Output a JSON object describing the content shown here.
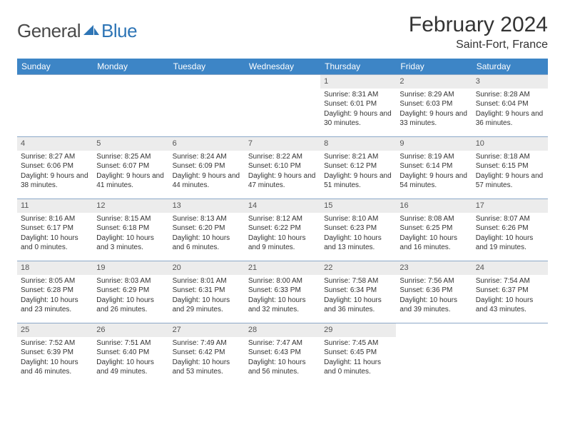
{
  "logo": {
    "general": "General",
    "blue": "Blue",
    "icon_color": "#2e75b6"
  },
  "title": "February 2024",
  "location": "Saint-Fort, France",
  "header_bg": "#3d85c6",
  "border_color": "#8ca8c8",
  "daynum_bg": "#ececec",
  "day_names": [
    "Sunday",
    "Monday",
    "Tuesday",
    "Wednesday",
    "Thursday",
    "Friday",
    "Saturday"
  ],
  "weeks": [
    [
      null,
      null,
      null,
      null,
      {
        "n": "1",
        "sr": "Sunrise: 8:31 AM",
        "ss": "Sunset: 6:01 PM",
        "dl": "Daylight: 9 hours and 30 minutes."
      },
      {
        "n": "2",
        "sr": "Sunrise: 8:29 AM",
        "ss": "Sunset: 6:03 PM",
        "dl": "Daylight: 9 hours and 33 minutes."
      },
      {
        "n": "3",
        "sr": "Sunrise: 8:28 AM",
        "ss": "Sunset: 6:04 PM",
        "dl": "Daylight: 9 hours and 36 minutes."
      }
    ],
    [
      {
        "n": "4",
        "sr": "Sunrise: 8:27 AM",
        "ss": "Sunset: 6:06 PM",
        "dl": "Daylight: 9 hours and 38 minutes."
      },
      {
        "n": "5",
        "sr": "Sunrise: 8:25 AM",
        "ss": "Sunset: 6:07 PM",
        "dl": "Daylight: 9 hours and 41 minutes."
      },
      {
        "n": "6",
        "sr": "Sunrise: 8:24 AM",
        "ss": "Sunset: 6:09 PM",
        "dl": "Daylight: 9 hours and 44 minutes."
      },
      {
        "n": "7",
        "sr": "Sunrise: 8:22 AM",
        "ss": "Sunset: 6:10 PM",
        "dl": "Daylight: 9 hours and 47 minutes."
      },
      {
        "n": "8",
        "sr": "Sunrise: 8:21 AM",
        "ss": "Sunset: 6:12 PM",
        "dl": "Daylight: 9 hours and 51 minutes."
      },
      {
        "n": "9",
        "sr": "Sunrise: 8:19 AM",
        "ss": "Sunset: 6:14 PM",
        "dl": "Daylight: 9 hours and 54 minutes."
      },
      {
        "n": "10",
        "sr": "Sunrise: 8:18 AM",
        "ss": "Sunset: 6:15 PM",
        "dl": "Daylight: 9 hours and 57 minutes."
      }
    ],
    [
      {
        "n": "11",
        "sr": "Sunrise: 8:16 AM",
        "ss": "Sunset: 6:17 PM",
        "dl": "Daylight: 10 hours and 0 minutes."
      },
      {
        "n": "12",
        "sr": "Sunrise: 8:15 AM",
        "ss": "Sunset: 6:18 PM",
        "dl": "Daylight: 10 hours and 3 minutes."
      },
      {
        "n": "13",
        "sr": "Sunrise: 8:13 AM",
        "ss": "Sunset: 6:20 PM",
        "dl": "Daylight: 10 hours and 6 minutes."
      },
      {
        "n": "14",
        "sr": "Sunrise: 8:12 AM",
        "ss": "Sunset: 6:22 PM",
        "dl": "Daylight: 10 hours and 9 minutes."
      },
      {
        "n": "15",
        "sr": "Sunrise: 8:10 AM",
        "ss": "Sunset: 6:23 PM",
        "dl": "Daylight: 10 hours and 13 minutes."
      },
      {
        "n": "16",
        "sr": "Sunrise: 8:08 AM",
        "ss": "Sunset: 6:25 PM",
        "dl": "Daylight: 10 hours and 16 minutes."
      },
      {
        "n": "17",
        "sr": "Sunrise: 8:07 AM",
        "ss": "Sunset: 6:26 PM",
        "dl": "Daylight: 10 hours and 19 minutes."
      }
    ],
    [
      {
        "n": "18",
        "sr": "Sunrise: 8:05 AM",
        "ss": "Sunset: 6:28 PM",
        "dl": "Daylight: 10 hours and 23 minutes."
      },
      {
        "n": "19",
        "sr": "Sunrise: 8:03 AM",
        "ss": "Sunset: 6:29 PM",
        "dl": "Daylight: 10 hours and 26 minutes."
      },
      {
        "n": "20",
        "sr": "Sunrise: 8:01 AM",
        "ss": "Sunset: 6:31 PM",
        "dl": "Daylight: 10 hours and 29 minutes."
      },
      {
        "n": "21",
        "sr": "Sunrise: 8:00 AM",
        "ss": "Sunset: 6:33 PM",
        "dl": "Daylight: 10 hours and 32 minutes."
      },
      {
        "n": "22",
        "sr": "Sunrise: 7:58 AM",
        "ss": "Sunset: 6:34 PM",
        "dl": "Daylight: 10 hours and 36 minutes."
      },
      {
        "n": "23",
        "sr": "Sunrise: 7:56 AM",
        "ss": "Sunset: 6:36 PM",
        "dl": "Daylight: 10 hours and 39 minutes."
      },
      {
        "n": "24",
        "sr": "Sunrise: 7:54 AM",
        "ss": "Sunset: 6:37 PM",
        "dl": "Daylight: 10 hours and 43 minutes."
      }
    ],
    [
      {
        "n": "25",
        "sr": "Sunrise: 7:52 AM",
        "ss": "Sunset: 6:39 PM",
        "dl": "Daylight: 10 hours and 46 minutes."
      },
      {
        "n": "26",
        "sr": "Sunrise: 7:51 AM",
        "ss": "Sunset: 6:40 PM",
        "dl": "Daylight: 10 hours and 49 minutes."
      },
      {
        "n": "27",
        "sr": "Sunrise: 7:49 AM",
        "ss": "Sunset: 6:42 PM",
        "dl": "Daylight: 10 hours and 53 minutes."
      },
      {
        "n": "28",
        "sr": "Sunrise: 7:47 AM",
        "ss": "Sunset: 6:43 PM",
        "dl": "Daylight: 10 hours and 56 minutes."
      },
      {
        "n": "29",
        "sr": "Sunrise: 7:45 AM",
        "ss": "Sunset: 6:45 PM",
        "dl": "Daylight: 11 hours and 0 minutes."
      },
      null,
      null
    ]
  ]
}
